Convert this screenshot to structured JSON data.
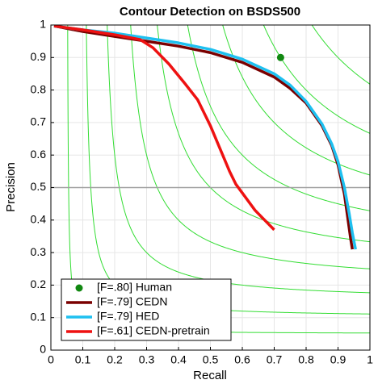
{
  "chart_data": {
    "type": "line",
    "title": "Contour Detection on BSDS500",
    "x_label": "Recall",
    "y_label": "Precision",
    "xlim": [
      0,
      1
    ],
    "ylim": [
      0,
      1
    ],
    "xticks": [
      0,
      0.1,
      0.2,
      0.3,
      0.4,
      0.5,
      0.6,
      0.7,
      0.8,
      0.9,
      1
    ],
    "yticks": [
      0,
      0.1,
      0.2,
      0.3,
      0.4,
      0.5,
      0.6,
      0.7,
      0.8,
      0.9,
      1
    ],
    "grid": true,
    "legend": "lower left",
    "iso_f_levels": [
      0.1,
      0.2,
      0.3,
      0.4,
      0.5,
      0.6,
      0.7,
      0.8,
      0.9
    ],
    "iso_f_color": "#33dd33",
    "hline": 0.5,
    "hline_color": "#a0a0a0",
    "points": [
      {
        "name": "[F=.80] Human",
        "color": "#118811",
        "x": 0.72,
        "y": 0.9
      }
    ],
    "series": [
      {
        "name": "[F=.79] CEDN",
        "color": "#7a0000",
        "x": [
          0.01,
          0.1,
          0.2,
          0.3,
          0.4,
          0.5,
          0.6,
          0.7,
          0.75,
          0.8,
          0.85,
          0.88,
          0.9,
          0.92,
          0.93,
          0.94,
          0.945
        ],
        "values": [
          0.997,
          0.98,
          0.965,
          0.95,
          0.935,
          0.915,
          0.885,
          0.84,
          0.805,
          0.76,
          0.69,
          0.63,
          0.57,
          0.48,
          0.41,
          0.34,
          0.31
        ]
      },
      {
        "name": "[F=.79] HED",
        "color": "#1ec0f0",
        "x": [
          0.01,
          0.1,
          0.2,
          0.3,
          0.4,
          0.5,
          0.6,
          0.7,
          0.75,
          0.8,
          0.85,
          0.88,
          0.9,
          0.92,
          0.935,
          0.945,
          0.955
        ],
        "values": [
          0.997,
          0.985,
          0.975,
          0.96,
          0.945,
          0.925,
          0.895,
          0.85,
          0.815,
          0.765,
          0.695,
          0.635,
          0.58,
          0.5,
          0.42,
          0.36,
          0.31
        ]
      },
      {
        "name": "[F=.61] CEDN-pretrain",
        "color": "#ee1111",
        "x": [
          0.01,
          0.1,
          0.2,
          0.28,
          0.32,
          0.37,
          0.42,
          0.46,
          0.5,
          0.53,
          0.56,
          0.58,
          0.61,
          0.64,
          0.67,
          0.7
        ],
        "values": [
          0.997,
          0.985,
          0.97,
          0.955,
          0.93,
          0.88,
          0.82,
          0.77,
          0.69,
          0.62,
          0.55,
          0.51,
          0.47,
          0.43,
          0.4,
          0.37
        ]
      }
    ]
  }
}
